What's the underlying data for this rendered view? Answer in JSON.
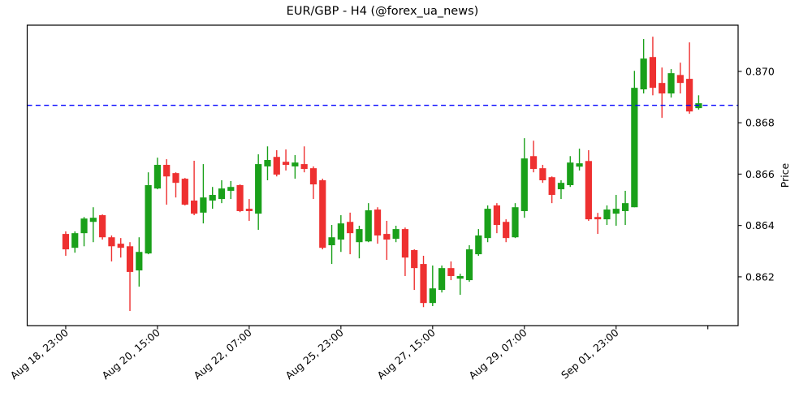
{
  "chart_data": {
    "type": "candlestick",
    "title": "EUR/GBP - H4 (@forex_ua_news)",
    "ylabel": "Price",
    "y_axis_side": "right",
    "grid": false,
    "ylim": [
      0.8601,
      0.8718
    ],
    "xlim": [
      -4.2,
      73.3
    ],
    "y_ticks": {
      "values": [
        0.862,
        0.864,
        0.866,
        0.868,
        0.87
      ],
      "labels": [
        "0.862",
        "0.864",
        "0.866",
        "0.868",
        "0.870"
      ]
    },
    "x_ticks": [
      {
        "index": 0,
        "label": "Aug 18, 23:00"
      },
      {
        "index": 10,
        "label": "Aug 20, 15:00"
      },
      {
        "index": 20,
        "label": "Aug 22, 07:00"
      },
      {
        "index": 30,
        "label": "Aug 25, 23:00"
      },
      {
        "index": 40,
        "label": "Aug 27, 15:00"
      },
      {
        "index": 50,
        "label": "Aug 29, 07:00"
      },
      {
        "index": 60,
        "label": "Sep 01, 23:00"
      },
      {
        "index": 70,
        "label": ""
      }
    ],
    "hline": {
      "value": 0.86868,
      "color": "#0000ff",
      "style": "dashed"
    },
    "colors": {
      "up": "#1aa01a",
      "down": "#ee3030",
      "axis": "#000000",
      "text": "#000000",
      "background": "#ffffff"
    },
    "candles_format": "ohlc",
    "candles": [
      [
        0.86367,
        0.86377,
        0.86282,
        0.86307
      ],
      [
        0.86313,
        0.86377,
        0.86294,
        0.8637
      ],
      [
        0.8637,
        0.86433,
        0.86319,
        0.86427
      ],
      [
        0.86414,
        0.86471,
        0.86335,
        0.8643
      ],
      [
        0.8644,
        0.86443,
        0.86345,
        0.86354
      ],
      [
        0.86354,
        0.86361,
        0.8626,
        0.86319
      ],
      [
        0.86329,
        0.86351,
        0.86275,
        0.86313
      ],
      [
        0.86319,
        0.86335,
        0.86067,
        0.86219
      ],
      [
        0.86225,
        0.86354,
        0.86162,
        0.86297
      ],
      [
        0.86291,
        0.86607,
        0.86288,
        0.86557
      ],
      [
        0.86544,
        0.86664,
        0.86541,
        0.86636
      ],
      [
        0.86636,
        0.86658,
        0.86481,
        0.86591
      ],
      [
        0.86604,
        0.86607,
        0.86509,
        0.86566
      ],
      [
        0.86582,
        0.86585,
        0.86478,
        0.86481
      ],
      [
        0.86497,
        0.86652,
        0.8644,
        0.86446
      ],
      [
        0.8645,
        0.86639,
        0.86408,
        0.86509
      ],
      [
        0.86497,
        0.8655,
        0.86465,
        0.86519
      ],
      [
        0.86503,
        0.86576,
        0.86487,
        0.86544
      ],
      [
        0.86535,
        0.86573,
        0.86503,
        0.8655
      ],
      [
        0.86557,
        0.8656,
        0.86452,
        0.86456
      ],
      [
        0.86465,
        0.86503,
        0.86418,
        0.86456
      ],
      [
        0.86446,
        0.86677,
        0.86383,
        0.86639
      ],
      [
        0.8663,
        0.86708,
        0.86576,
        0.86655
      ],
      [
        0.86667,
        0.86693,
        0.86591,
        0.86598
      ],
      [
        0.86648,
        0.86696,
        0.86614,
        0.86636
      ],
      [
        0.8663,
        0.86674,
        0.86582,
        0.86645
      ],
      [
        0.86639,
        0.86708,
        0.86607,
        0.8662
      ],
      [
        0.86623,
        0.8663,
        0.86503,
        0.8656
      ],
      [
        0.86576,
        0.86582,
        0.86307,
        0.86313
      ],
      [
        0.86323,
        0.86402,
        0.8625,
        0.86354
      ],
      [
        0.86345,
        0.8644,
        0.86297,
        0.86408
      ],
      [
        0.86414,
        0.8645,
        0.86288,
        0.8637
      ],
      [
        0.86335,
        0.86399,
        0.86272,
        0.86386
      ],
      [
        0.86338,
        0.86487,
        0.86335,
        0.86459
      ],
      [
        0.86462,
        0.86471,
        0.86329,
        0.86361
      ],
      [
        0.86367,
        0.86418,
        0.86266,
        0.86345
      ],
      [
        0.86348,
        0.86399,
        0.86335,
        0.86386
      ],
      [
        0.86386,
        0.86392,
        0.86203,
        0.86275
      ],
      [
        0.86304,
        0.86307,
        0.86149,
        0.86234
      ],
      [
        0.8625,
        0.86282,
        0.86082,
        0.86098
      ],
      [
        0.86098,
        0.86244,
        0.86086,
        0.86155
      ],
      [
        0.86149,
        0.86244,
        0.86139,
        0.86234
      ],
      [
        0.86234,
        0.8626,
        0.86187,
        0.86203
      ],
      [
        0.86193,
        0.86212,
        0.8613,
        0.86203
      ],
      [
        0.86187,
        0.86323,
        0.86181,
        0.86307
      ],
      [
        0.86288,
        0.86386,
        0.86282,
        0.86361
      ],
      [
        0.86351,
        0.86478,
        0.86335,
        0.86465
      ],
      [
        0.86478,
        0.86487,
        0.8637,
        0.86402
      ],
      [
        0.86414,
        0.86424,
        0.86335,
        0.86351
      ],
      [
        0.86354,
        0.86487,
        0.86351,
        0.86471
      ],
      [
        0.86456,
        0.8674,
        0.8643,
        0.86661
      ],
      [
        0.8667,
        0.8673,
        0.86607,
        0.8662
      ],
      [
        0.86623,
        0.86636,
        0.86566,
        0.86576
      ],
      [
        0.86588,
        0.86591,
        0.86487,
        0.86519
      ],
      [
        0.86541,
        0.86576,
        0.86503,
        0.86566
      ],
      [
        0.86557,
        0.8667,
        0.8655,
        0.86645
      ],
      [
        0.86629,
        0.86699,
        0.86614,
        0.86642
      ],
      [
        0.86651,
        0.86693,
        0.86418,
        0.86424
      ],
      [
        0.86433,
        0.86449,
        0.86367,
        0.86424
      ],
      [
        0.86424,
        0.86478,
        0.86402,
        0.86462
      ],
      [
        0.86446,
        0.86519,
        0.86399,
        0.86465
      ],
      [
        0.86456,
        0.86535,
        0.86402,
        0.86487
      ],
      [
        0.86471,
        0.87002,
        0.86471,
        0.86936
      ],
      [
        0.8693,
        0.87126,
        0.86914,
        0.8705
      ],
      [
        0.87056,
        0.87135,
        0.86907,
        0.86936
      ],
      [
        0.86955,
        0.87015,
        0.86819,
        0.86914
      ],
      [
        0.86914,
        0.87009,
        0.86898,
        0.86993
      ],
      [
        0.86986,
        0.87034,
        0.86914,
        0.86955
      ],
      [
        0.86971,
        0.87113,
        0.86835,
        0.86844
      ],
      [
        0.86857,
        0.86907,
        0.86851,
        0.86876
      ]
    ]
  }
}
